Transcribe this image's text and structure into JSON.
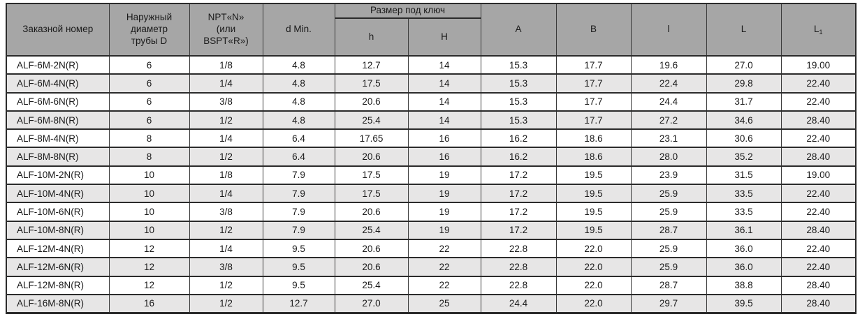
{
  "colors": {
    "header_bg": "#a6a6a6",
    "row_stripe": "#e7e6e6",
    "border_dark": "#2b2b2b",
    "border_mid": "#3a3a3a",
    "text": "#1a1a1a",
    "page_bg": "#ffffff"
  },
  "table": {
    "header": {
      "order_number": "Заказной номер",
      "outer_diameter": "Наружный\nдиаметр\nтрубы D",
      "thread": "NPT«N»\n(или\nBSPT«R»)",
      "d_min": "d Min.",
      "wrench_size": "Размер под ключ",
      "h_lower": "h",
      "h_upper": "H",
      "a": "A",
      "b": "B",
      "l_lower": "l",
      "l_upper": "L",
      "l1_base": "L",
      "l1_sub": "1"
    },
    "rows": [
      [
        "ALF-6M-2N(R)",
        "6",
        "1/8",
        "4.8",
        "12.7",
        "14",
        "15.3",
        "17.7",
        "19.6",
        "27.0",
        "19.00"
      ],
      [
        "ALF-6M-4N(R)",
        "6",
        "1/4",
        "4.8",
        "17.5",
        "14",
        "15.3",
        "17.7",
        "22.4",
        "29.8",
        "22.40"
      ],
      [
        "ALF-6M-6N(R)",
        "6",
        "3/8",
        "4.8",
        "20.6",
        "14",
        "15.3",
        "17.7",
        "24.4",
        "31.7",
        "22.40"
      ],
      [
        "ALF-6M-8N(R)",
        "6",
        "1/2",
        "4.8",
        "25.4",
        "14",
        "15.3",
        "17.7",
        "27.2",
        "34.6",
        "28.40"
      ],
      [
        "ALF-8M-4N(R)",
        "8",
        "1/4",
        "6.4",
        "17.65",
        "16",
        "16.2",
        "18.6",
        "23.1",
        "30.6",
        "22.40"
      ],
      [
        "ALF-8M-8N(R)",
        "8",
        "1/2",
        "6.4",
        "20.6",
        "16",
        "16.2",
        "18.6",
        "28.0",
        "35.2",
        "28.40"
      ],
      [
        "ALF-10M-2N(R)",
        "10",
        "1/8",
        "7.9",
        "17.5",
        "19",
        "17.2",
        "19.5",
        "23.9",
        "31.5",
        "19.00"
      ],
      [
        "ALF-10M-4N(R)",
        "10",
        "1/4",
        "7.9",
        "17.5",
        "19",
        "17.2",
        "19.5",
        "25.9",
        "33.5",
        "22.40"
      ],
      [
        "ALF-10M-6N(R)",
        "10",
        "3/8",
        "7.9",
        "20.6",
        "19",
        "17.2",
        "19.5",
        "25.9",
        "33.5",
        "22.40"
      ],
      [
        "ALF-10M-8N(R)",
        "10",
        "1/2",
        "7.9",
        "25.4",
        "19",
        "17.2",
        "19.5",
        "28.7",
        "36.1",
        "28.40"
      ],
      [
        "ALF-12M-4N(R)",
        "12",
        "1/4",
        "9.5",
        "20.6",
        "22",
        "22.8",
        "22.0",
        "25.9",
        "36.0",
        "22.40"
      ],
      [
        "ALF-12M-6N(R)",
        "12",
        "3/8",
        "9.5",
        "20.6",
        "22",
        "22.8",
        "22.0",
        "25.9",
        "36.0",
        "22.40"
      ],
      [
        "ALF-12M-8N(R)",
        "12",
        "1/2",
        "9.5",
        "25.4",
        "22",
        "22.8",
        "22.0",
        "28.7",
        "38.8",
        "28.40"
      ],
      [
        "ALF-16M-8N(R)",
        "16",
        "1/2",
        "12.7",
        "27.0",
        "25",
        "24.4",
        "22.0",
        "29.7",
        "39.5",
        "28.40"
      ]
    ]
  }
}
